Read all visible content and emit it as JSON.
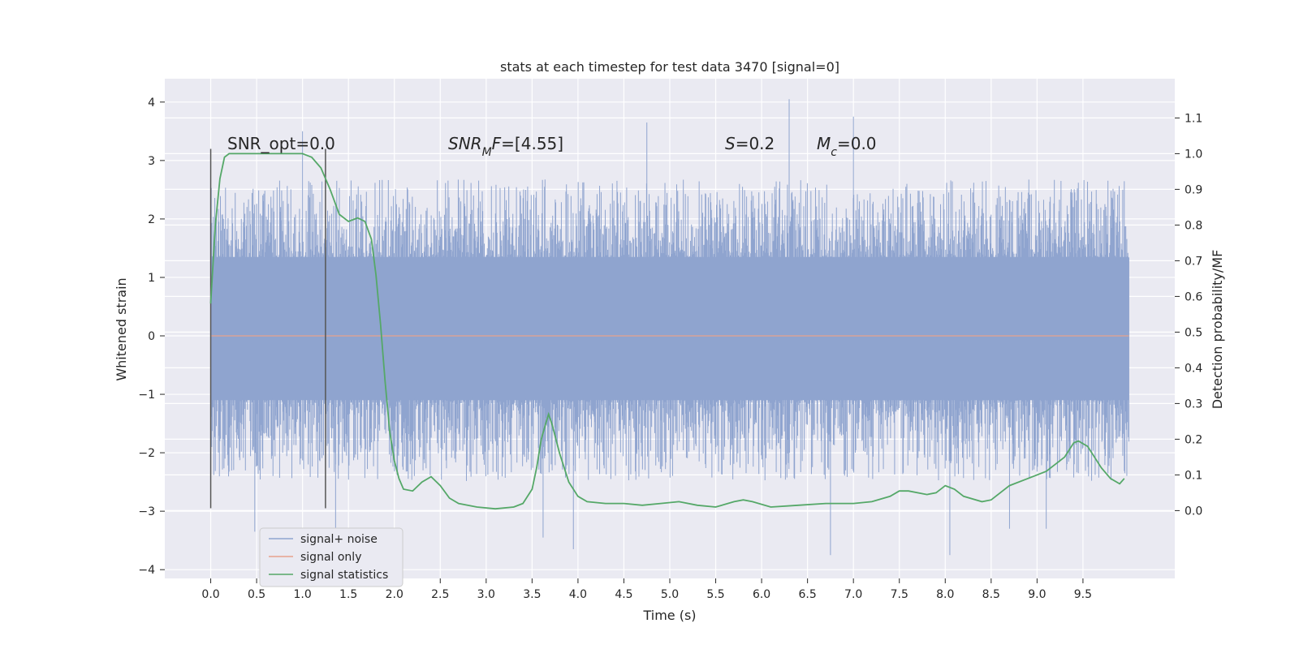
{
  "chart_data": {
    "type": "line",
    "title": "stats at each timestep for test data 3470 [signal=0]",
    "xlabel": "Time (s)",
    "ylabel": "Whitened strain",
    "y2label": "Detection probability/MF",
    "xlim": [
      -0.5,
      10.5
    ],
    "ylim": [
      -4.15,
      4.4
    ],
    "y2lim": [
      -0.19,
      1.21
    ],
    "xticks": [
      "0.0",
      "0.5",
      "1.0",
      "1.5",
      "2.0",
      "2.5",
      "3.0",
      "3.5",
      "4.0",
      "4.5",
      "5.0",
      "5.5",
      "6.0",
      "6.5",
      "7.0",
      "7.5",
      "8.0",
      "8.5",
      "9.0",
      "9.5"
    ],
    "yticks": [
      "4",
      "3",
      "2",
      "1",
      "0",
      "−1",
      "−2",
      "−3",
      "−4"
    ],
    "y2ticks": [
      "1.1",
      "1.0",
      "0.9",
      "0.8",
      "0.7",
      "0.6",
      "0.5",
      "0.4",
      "0.3",
      "0.2",
      "0.1",
      "0.0"
    ],
    "grid": true,
    "legend_position": "lower-left",
    "background_color": "#eaeaf2",
    "vlines_x": [
      0.0,
      1.25
    ],
    "vlines_y": [
      -2.95,
      3.2
    ],
    "series": [
      {
        "name": "signal+ noise",
        "axis": "left",
        "color": "#8fa4cf",
        "x_start": 0.0,
        "x_end": 10.0,
        "typical_range": [
          -2.2,
          2.4
        ],
        "extremes": [
          [
            6.3,
            4.05
          ],
          [
            7.0,
            3.75
          ],
          [
            4.75,
            3.65
          ],
          [
            1.0,
            3.5
          ],
          [
            1.36,
            -3.3
          ],
          [
            0.48,
            -3.35
          ],
          [
            3.95,
            -3.65
          ],
          [
            6.75,
            -3.75
          ],
          [
            8.05,
            -3.75
          ],
          [
            8.7,
            -3.3
          ],
          [
            9.1,
            -3.3
          ],
          [
            3.62,
            -3.45
          ]
        ]
      },
      {
        "name": "signal only",
        "axis": "left",
        "color": "#e8a28c",
        "x": [
          0.0,
          10.0
        ],
        "y": [
          0.0,
          0.0
        ]
      },
      {
        "name": "signal statistics",
        "axis": "right",
        "color": "#55a868",
        "x": [
          0.0,
          0.05,
          0.1,
          0.15,
          0.2,
          0.3,
          0.5,
          0.8,
          1.0,
          1.1,
          1.2,
          1.3,
          1.4,
          1.5,
          1.6,
          1.68,
          1.75,
          1.8,
          1.85,
          1.9,
          1.95,
          2.0,
          2.05,
          2.1,
          2.2,
          2.3,
          2.4,
          2.5,
          2.6,
          2.7,
          2.9,
          3.1,
          3.3,
          3.4,
          3.5,
          3.55,
          3.6,
          3.65,
          3.68,
          3.72,
          3.8,
          3.9,
          4.0,
          4.1,
          4.3,
          4.5,
          4.7,
          4.9,
          5.1,
          5.3,
          5.5,
          5.7,
          5.8,
          5.9,
          6.1,
          6.4,
          6.7,
          7.0,
          7.2,
          7.4,
          7.5,
          7.6,
          7.8,
          7.9,
          8.0,
          8.1,
          8.2,
          8.4,
          8.5,
          8.7,
          8.9,
          9.1,
          9.3,
          9.4,
          9.45,
          9.55,
          9.7,
          9.8,
          9.9,
          9.95
        ],
        "y": [
          0.58,
          0.8,
          0.93,
          0.99,
          1.0,
          1.0,
          1.0,
          1.0,
          1.0,
          0.99,
          0.96,
          0.9,
          0.83,
          0.81,
          0.82,
          0.81,
          0.76,
          0.66,
          0.52,
          0.36,
          0.22,
          0.14,
          0.09,
          0.06,
          0.055,
          0.08,
          0.095,
          0.07,
          0.035,
          0.02,
          0.01,
          0.005,
          0.01,
          0.02,
          0.06,
          0.12,
          0.2,
          0.245,
          0.27,
          0.24,
          0.16,
          0.08,
          0.04,
          0.025,
          0.02,
          0.02,
          0.015,
          0.02,
          0.025,
          0.015,
          0.01,
          0.025,
          0.03,
          0.025,
          0.01,
          0.015,
          0.02,
          0.02,
          0.025,
          0.04,
          0.055,
          0.055,
          0.045,
          0.05,
          0.07,
          0.06,
          0.04,
          0.025,
          0.03,
          0.07,
          0.09,
          0.11,
          0.15,
          0.19,
          0.195,
          0.18,
          0.12,
          0.09,
          0.075,
          0.09
        ]
      }
    ],
    "annotations": [
      {
        "id": "snr-opt",
        "parts": [
          {
            "text": "SNR_opt=0.0",
            "italic": false
          }
        ]
      },
      {
        "id": "snr-mf",
        "parts": [
          {
            "text": "SNR",
            "italic": true
          },
          {
            "text": "M",
            "italic": true,
            "sub": true
          },
          {
            "text": "F",
            "italic": true
          },
          {
            "text": "=[4.55]",
            "italic": false
          }
        ]
      },
      {
        "id": "s-value",
        "parts": [
          {
            "text": "S",
            "italic": true
          },
          {
            "text": "=0.2",
            "italic": false
          }
        ]
      },
      {
        "id": "mc-value",
        "parts": [
          {
            "text": "M",
            "italic": true
          },
          {
            "text": "c",
            "italic": true,
            "sub": true
          },
          {
            "text": "=0.0",
            "italic": false
          }
        ]
      }
    ]
  }
}
